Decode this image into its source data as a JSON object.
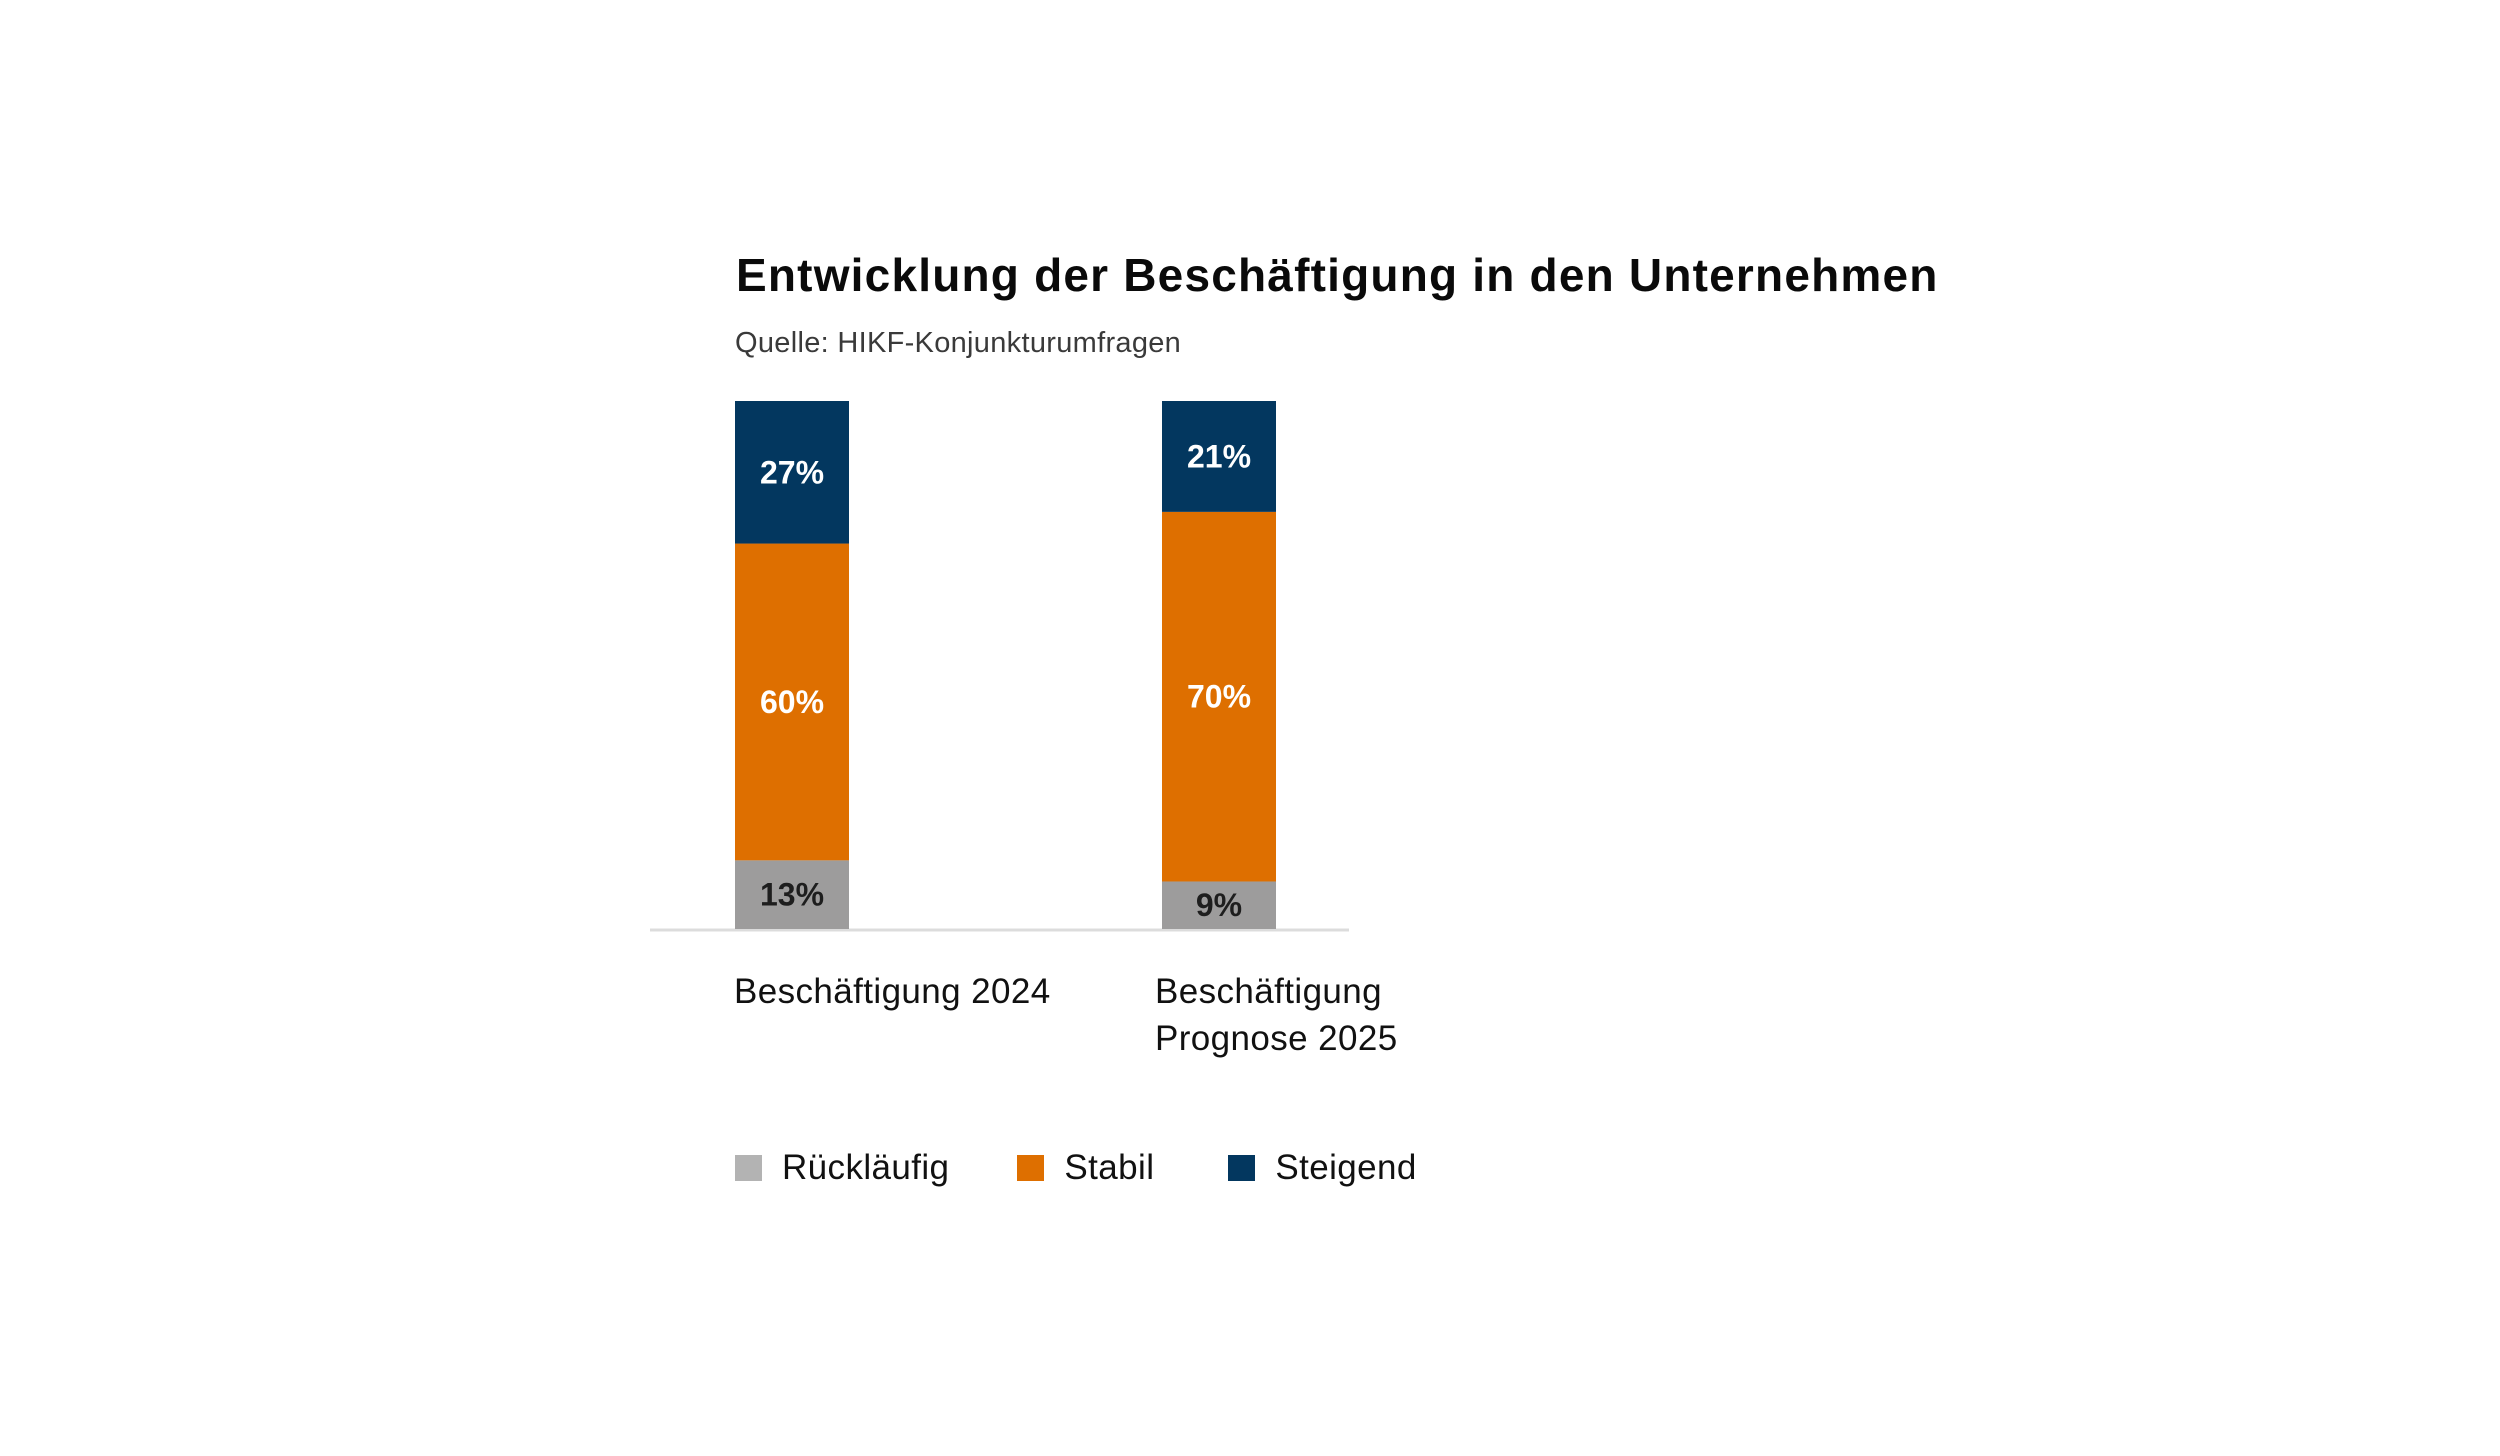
{
  "chart_data": {
    "type": "bar",
    "stacked": true,
    "title": "Entwicklung der Beschäftigung in den Unternehmen",
    "subtitle": "Quelle: HIKF-Konjunkturumfragen",
    "xlabel": "",
    "ylabel": "",
    "ylim": [
      0,
      100
    ],
    "grid": false,
    "categories": [
      "Beschäftigung 2024",
      "Beschäftigung\nPrognose 2025"
    ],
    "series": [
      {
        "name": "Rückläufig",
        "color": "#9d9c9c",
        "legend_color": "#b3b3b3",
        "label_color": "#1e1e1e",
        "values": [
          13,
          9
        ],
        "labels": [
          "13%",
          "9%"
        ]
      },
      {
        "name": "Stabil",
        "color": "#de6f00",
        "legend_color": "#de6f00",
        "label_color": "#ffffff",
        "values": [
          60,
          70
        ],
        "labels": [
          "60%",
          "70%"
        ]
      },
      {
        "name": "Steigend",
        "color": "#03375f",
        "legend_color": "#03375f",
        "label_color": "#ffffff",
        "values": [
          27,
          21
        ],
        "labels": [
          "27%",
          "21%"
        ]
      }
    ],
    "legend_position": "bottom-left",
    "axis_color": "#dcdcdc"
  }
}
